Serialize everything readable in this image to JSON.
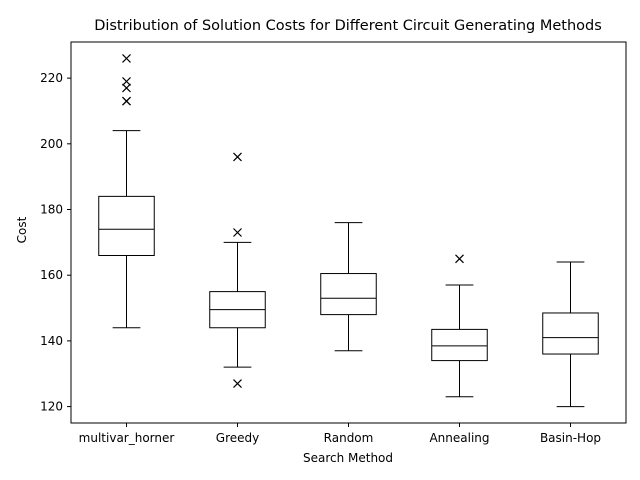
{
  "chart_data": {
    "type": "boxplot",
    "title": "Distribution of Solution Costs for Different Circuit Generating Methods",
    "xlabel": "Search Method",
    "ylabel": "Cost",
    "ylim": [
      115,
      231
    ],
    "yticks": [
      120,
      140,
      160,
      180,
      200,
      220
    ],
    "grid": false,
    "legend": "none",
    "colors": {
      "line": "#000000",
      "background": "#ffffff"
    },
    "categories": [
      "multivar_horner",
      "Greedy",
      "Random",
      "Annealing",
      "Basin-Hop"
    ],
    "boxes": [
      {
        "name": "multivar_horner",
        "whisker_low": 144,
        "q1": 166,
        "median": 174,
        "q3": 184,
        "whisker_high": 204,
        "outliers": [
          213,
          213,
          217,
          219,
          226
        ]
      },
      {
        "name": "Greedy",
        "whisker_low": 132,
        "q1": 144,
        "median": 149.5,
        "q3": 155,
        "whisker_high": 170,
        "outliers": [
          127,
          173,
          196
        ]
      },
      {
        "name": "Random",
        "whisker_low": 137,
        "q1": 148,
        "median": 153,
        "q3": 160.5,
        "whisker_high": 176,
        "outliers": []
      },
      {
        "name": "Annealing",
        "whisker_low": 123,
        "q1": 134,
        "median": 138.5,
        "q3": 143.5,
        "whisker_high": 157,
        "outliers": [
          165
        ]
      },
      {
        "name": "Basin-Hop",
        "whisker_low": 120,
        "q1": 136,
        "median": 141,
        "q3": 148.5,
        "whisker_high": 164,
        "outliers": []
      }
    ]
  }
}
